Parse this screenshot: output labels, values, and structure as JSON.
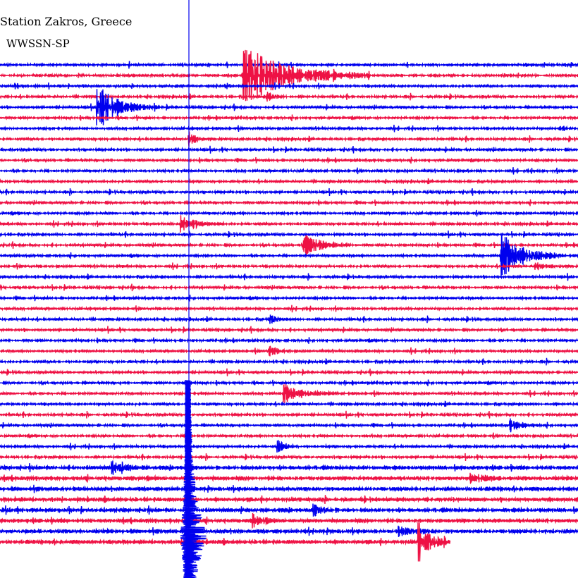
{
  "chart_data": {
    "type": "line",
    "title": "Station Zakros, Greece",
    "subtitle": "WWSSN-SP",
    "trace_count": 46,
    "trace_colors": [
      "#0000ee",
      "#ee1144"
    ],
    "xlabel": "",
    "ylabel": "",
    "grid": false,
    "legend": "none"
  }
}
